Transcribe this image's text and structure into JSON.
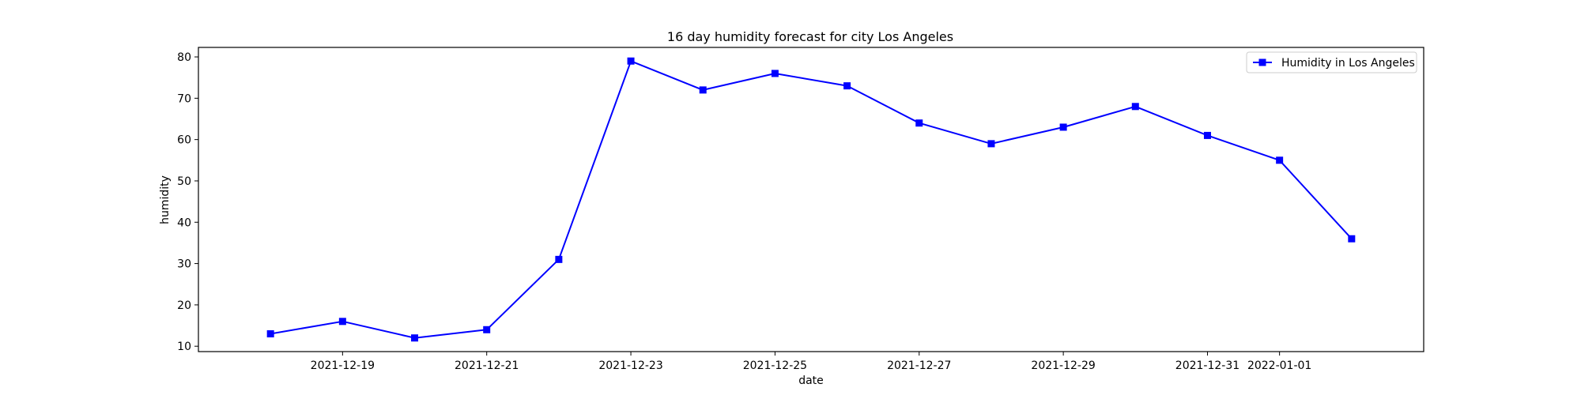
{
  "chart_data": {
    "type": "line",
    "title": "16 day humidity forecast for city Los Angeles",
    "xlabel": "date",
    "ylabel": "humidity",
    "x": [
      "2021-12-18",
      "2021-12-19",
      "2021-12-20",
      "2021-12-21",
      "2021-12-22",
      "2021-12-23",
      "2021-12-24",
      "2021-12-25",
      "2021-12-26",
      "2021-12-27",
      "2021-12-28",
      "2021-12-29",
      "2021-12-30",
      "2021-12-31",
      "2022-01-01",
      "2022-01-02"
    ],
    "series": [
      {
        "name": "Humidity in Los Angeles",
        "color": "#0000ff",
        "marker": "square",
        "values": [
          13,
          16,
          12,
          14,
          31,
          79,
          72,
          76,
          73,
          64,
          59,
          63,
          68,
          61,
          55,
          36
        ]
      }
    ],
    "x_ticks": [
      "2021-12-19",
      "2021-12-21",
      "2021-12-23",
      "2021-12-25",
      "2021-12-27",
      "2021-12-29",
      "2021-12-31",
      "2022-01-01"
    ],
    "y_ticks": [
      10,
      20,
      30,
      40,
      50,
      60,
      70,
      80
    ],
    "xlim": [
      "2021-12-17",
      "2022-01-03"
    ],
    "ylim": [
      8.7,
      82.3
    ],
    "grid": false,
    "legend_position": "top-right"
  }
}
